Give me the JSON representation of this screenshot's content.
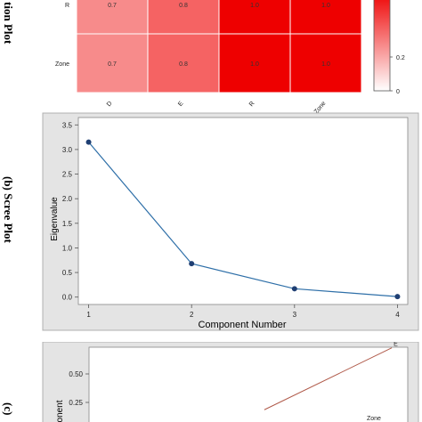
{
  "panel_a": {
    "side_label": "tion Plot"
  },
  "panel_b": {
    "side_label": "(b)  Scree Plot"
  },
  "panel_c": {
    "side_label": "(c)"
  },
  "chart_data": [
    {
      "type": "heatmap",
      "rows": [
        "R",
        "Zone"
      ],
      "columns": [
        "D",
        "E",
        "R",
        "Zone"
      ],
      "values": [
        [
          0.7,
          0.8,
          1.0,
          1.0
        ],
        [
          0.7,
          0.8,
          1.0,
          1.0
        ]
      ],
      "cell_labels": [
        [
          "0.7",
          "0.8",
          "1.0",
          "1.0"
        ],
        [
          "0.7",
          "0.8",
          "1.0",
          "1.0"
        ]
      ],
      "colorbar_ticks": [
        "0.2",
        "0"
      ],
      "colorbar_range": [
        0,
        1
      ],
      "colors": {
        "low": "#ffffff",
        "high": "#ee0000"
      }
    },
    {
      "type": "line",
      "x": [
        1,
        2,
        3,
        4
      ],
      "values": [
        3.15,
        0.68,
        0.17,
        0.01
      ],
      "xlabel": "Component Number",
      "ylabel": "Eigenvalue",
      "xticks": [
        "1",
        "2",
        "3",
        "4"
      ],
      "yticks": [
        "0.0",
        "0.5",
        "1.0",
        "1.5",
        "2.0",
        "2.5",
        "3.0",
        "3.5"
      ],
      "xlim": [
        0.9,
        4.1
      ],
      "ylim": [
        -0.15,
        3.65
      ],
      "grid": false,
      "colors": {
        "line": "#2e6fa8",
        "marker": "#1f3f73"
      }
    },
    {
      "type": "line",
      "yticks": [
        "0.50",
        "0.25"
      ],
      "ylabel": "onent",
      "series": [
        {
          "name": "E",
          "points": [
            [
              0.55,
              0.15
            ],
            [
              0.95,
              0.63
            ]
          ]
        }
      ],
      "annotations": [
        "E",
        "Zone"
      ],
      "colors": {
        "line": "#b05a4a"
      }
    }
  ]
}
